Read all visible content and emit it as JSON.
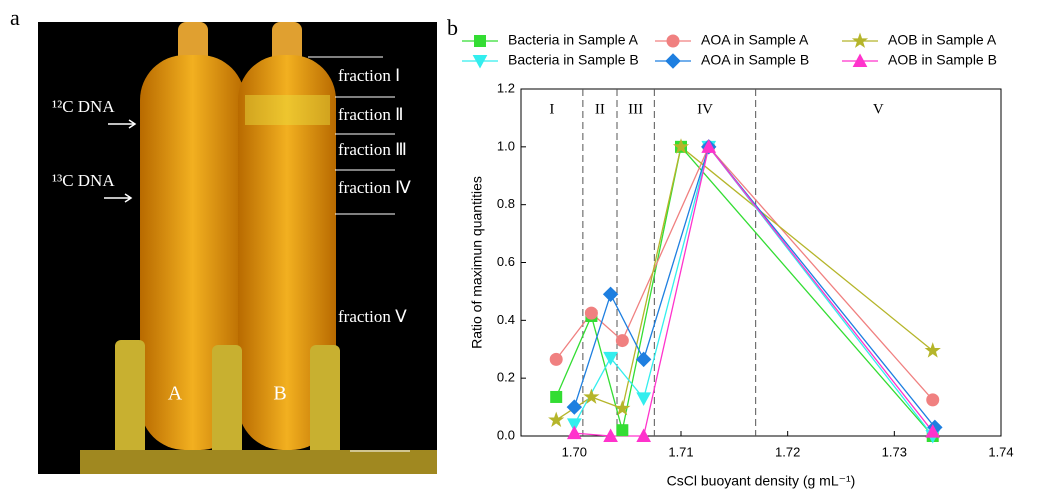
{
  "panel_a": {
    "label": "a",
    "fractions": [
      "fraction Ⅰ",
      "fraction Ⅱ",
      "fraction Ⅲ",
      "fraction Ⅳ",
      "fraction Ⅴ"
    ],
    "c12": "¹²C DNA",
    "c13": "¹³C DNA",
    "tubes": [
      "A",
      "B"
    ]
  },
  "chart_data": {
    "type": "line",
    "panel_label": "b",
    "xlabel": "CsCl buoyant density (g mL⁻¹)",
    "ylabel": "Ratio of maximun quantities",
    "xlim": [
      1.695,
      1.74
    ],
    "ylim": [
      0,
      1.2
    ],
    "xticks": [
      {
        "value": 1.7,
        "label": "1.70"
      },
      1.71,
      {
        "value": 1.72,
        "label": "1.72"
      },
      1.73,
      {
        "value": 1.74,
        "label": "1.74"
      }
    ],
    "yticks": [
      {
        "value": 0,
        "label": "0.0"
      },
      0.2,
      0.4,
      0.6,
      0.8,
      {
        "value": 1,
        "label": "1.0"
      },
      1.2
    ],
    "dividers": [
      1.7008,
      1.704,
      1.7075,
      1.717
    ],
    "regions": [
      "I",
      "II",
      "III",
      "IV",
      "V"
    ],
    "series": [
      {
        "name": "Bacteria in Sample A",
        "color": "#33dd33",
        "marker": "square",
        "x": [
          1.6983,
          1.7016,
          1.7045,
          1.71,
          1.7336
        ],
        "values": [
          0.135,
          0.415,
          0.02,
          1.0,
          0.0
        ]
      },
      {
        "name": "AOA in Sample A",
        "color": "#f08080",
        "marker": "circle",
        "x": [
          1.6983,
          1.7016,
          1.7045,
          1.7126,
          1.7336
        ],
        "values": [
          0.265,
          0.425,
          0.33,
          1.0,
          0.125
        ]
      },
      {
        "name": "AOB in Sample A",
        "color": "#b5b52a",
        "marker": "star",
        "x": [
          1.6983,
          1.7016,
          1.7045,
          1.71,
          1.7336
        ],
        "values": [
          0.055,
          0.135,
          0.095,
          1.0,
          0.295
        ]
      },
      {
        "name": "Bacteria in Sample B",
        "color": "#33eeee",
        "marker": "triangle-down",
        "x": [
          1.7,
          1.7034,
          1.7065,
          1.7126,
          1.7336
        ],
        "values": [
          0.04,
          0.27,
          0.13,
          1.0,
          0.0
        ]
      },
      {
        "name": "AOA in Sample B",
        "color": "#1e7fe0",
        "marker": "diamond",
        "x": [
          1.7,
          1.7034,
          1.7065,
          1.7126,
          1.7338
        ],
        "values": [
          0.1,
          0.49,
          0.265,
          1.0,
          0.03
        ]
      },
      {
        "name": "AOB in Sample B",
        "color": "#ff33cc",
        "marker": "triangle-up",
        "x": [
          1.7,
          1.7034,
          1.7065,
          1.7126,
          1.7336
        ],
        "values": [
          0.01,
          0.0,
          0.0,
          1.0,
          0.015
        ]
      }
    ]
  }
}
